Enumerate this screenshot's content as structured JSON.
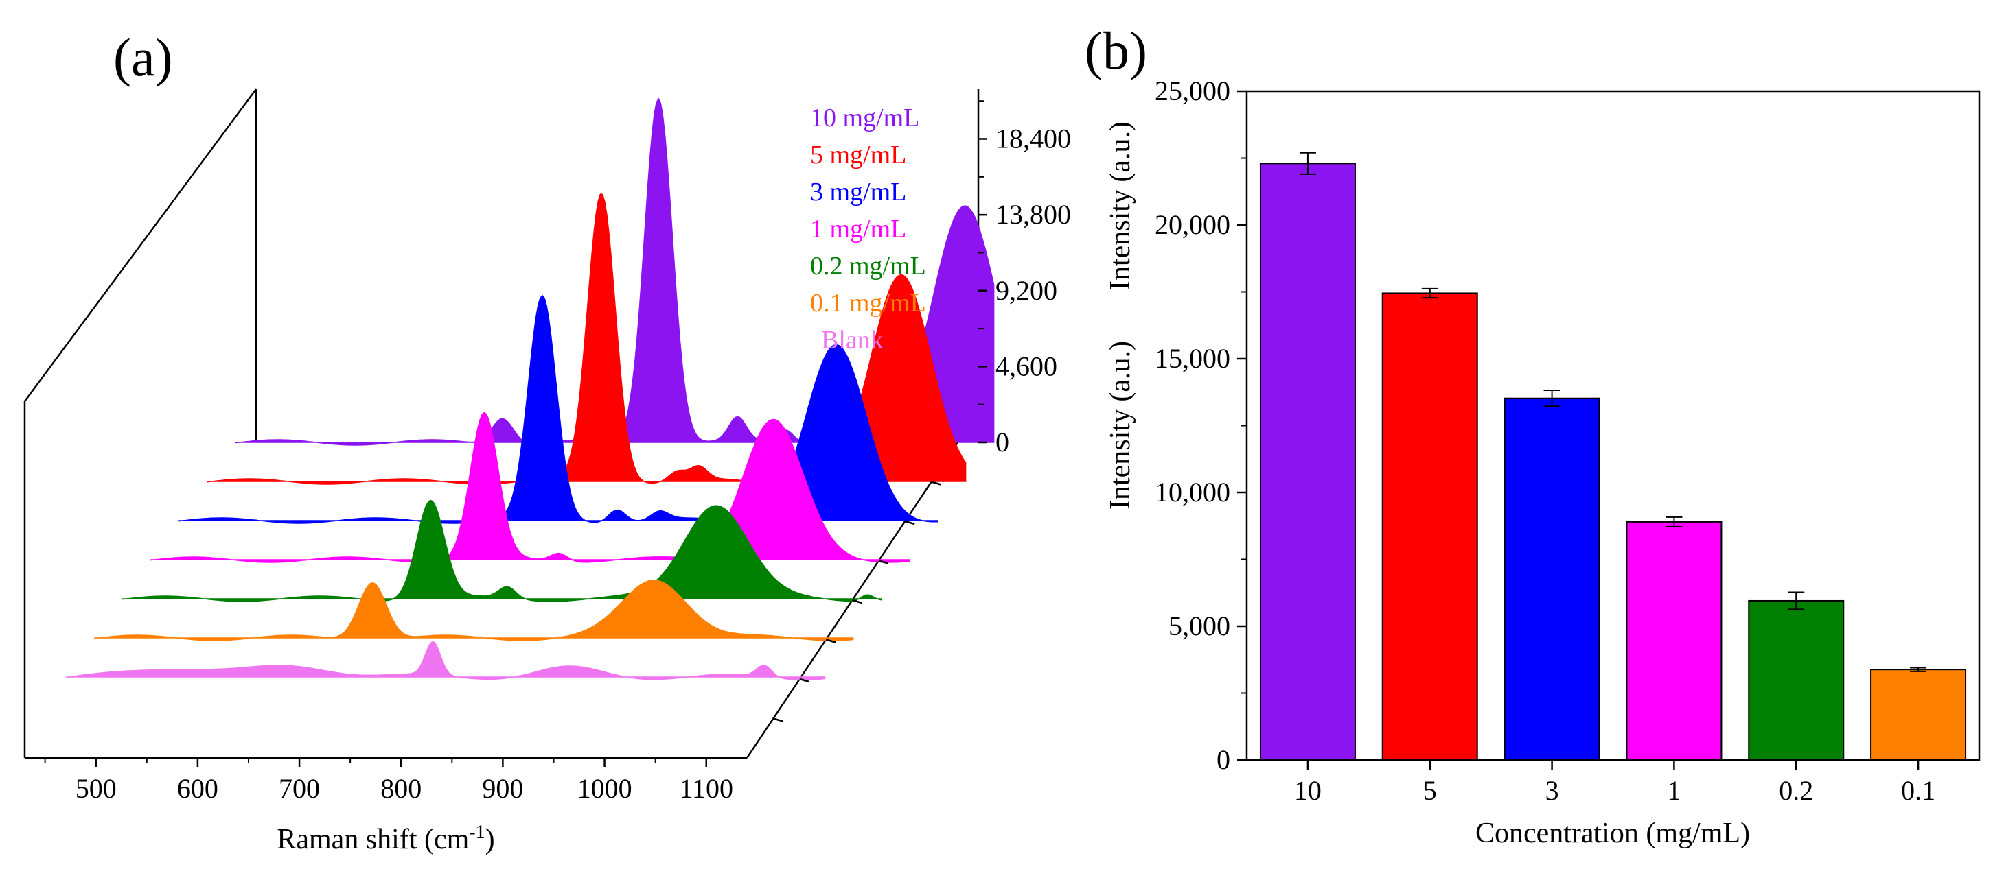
{
  "chart_data": [
    {
      "panel": "a",
      "panel_label": "(a)",
      "type": "area",
      "title": "",
      "xlabel": "Raman shift (cm",
      "xlabel_sup": "-1",
      "xlabel_close": ")",
      "xticks": [
        "500",
        "600",
        "700",
        "800",
        "900",
        "1000",
        "1100"
      ],
      "xlim": [
        430,
        1140
      ],
      "zticks": [
        "0",
        "4,600",
        "9,200",
        "13,800",
        "18,400"
      ],
      "zlim": [
        0,
        21000
      ],
      "series": [
        {
          "name": "10 mg/mL",
          "color": "#8B14F0",
          "peaks": [
            [
              680,
              1600,
              10
            ],
            [
              826,
              21000,
              13
            ],
            [
              900,
              1400,
              8
            ],
            [
              945,
              800,
              8
            ],
            [
              1113,
              14500,
              30
            ]
          ]
        },
        {
          "name": "5 mg/mL",
          "color": "#FF0000",
          "peaks": [
            [
              799,
              17500,
              13
            ],
            [
              870,
              600,
              8
            ],
            [
              890,
              800,
              8
            ],
            [
              1080,
              12500,
              28
            ]
          ]
        },
        {
          "name": "3 mg/mL",
          "color": "#0000FF",
          "peaks": [
            [
              770,
              13500,
              13
            ],
            [
              840,
              800,
              8
            ],
            [
              880,
              500,
              8
            ],
            [
              1045,
              10500,
              28
            ]
          ]
        },
        {
          "name": "1 mg/mL",
          "color": "#FF00FF",
          "peaks": [
            [
              742,
              8800,
              13
            ],
            [
              812,
              500,
              8
            ],
            [
              1012,
              8500,
              28
            ]
          ]
        },
        {
          "name": "0.2 mg/mL",
          "color": "#008000",
          "peaks": [
            [
              718,
              6000,
              13
            ],
            [
              790,
              700,
              8
            ],
            [
              985,
              5800,
              30
            ],
            [
              1127,
              400,
              6
            ]
          ]
        },
        {
          "name": "0.1 mg/mL",
          "color": "#FF8000",
          "peaks": [
            [
              690,
              3500,
              13
            ],
            [
              955,
              3600,
              30
            ]
          ]
        },
        {
          "name": "Blank",
          "color": "#F075F0",
          "peaks": [
            [
              540,
              600,
              40
            ],
            [
              650,
              600,
              40
            ],
            [
              773,
              2000,
              7
            ],
            [
              900,
              500,
              30
            ],
            [
              1083,
              700,
              7
            ]
          ]
        }
      ]
    },
    {
      "panel": "b",
      "panel_label": "(b)",
      "type": "bar",
      "title": "",
      "xlabel": "Concentration (mg/mL)",
      "ylabel": "Intensity (a.u.)",
      "ylim": [
        0,
        25000
      ],
      "yticks": [
        0,
        5000,
        10000,
        15000,
        20000,
        25000
      ],
      "ytick_labels": [
        "0",
        "5,000",
        "10,000",
        "15,000",
        "20,000",
        "25,000"
      ],
      "categories": [
        "10",
        "5",
        "3",
        "1",
        "0.2",
        "0.1"
      ],
      "values": [
        22300,
        17450,
        13520,
        8900,
        5950,
        3380
      ],
      "errors": [
        400,
        170,
        300,
        180,
        320,
        70
      ],
      "colors": [
        "#8B14F0",
        "#FF0000",
        "#0000FF",
        "#FF00FF",
        "#008000",
        "#FF8000"
      ]
    }
  ]
}
